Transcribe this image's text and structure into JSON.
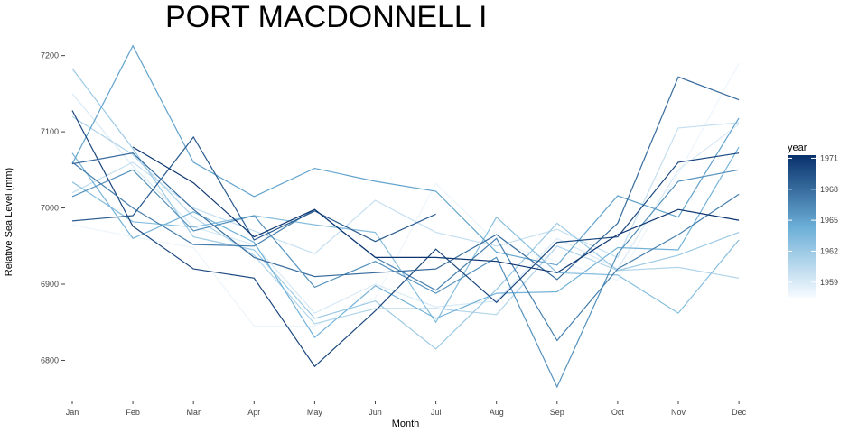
{
  "chart_data": {
    "type": "line",
    "title": "PORT MACDONNELL I",
    "xlabel": "Month",
    "ylabel": "Relative Sea Level (mm)",
    "categories": [
      "Jan",
      "Feb",
      "Mar",
      "Apr",
      "May",
      "Jun",
      "Jul",
      "Aug",
      "Sep",
      "Oct",
      "Nov",
      "Dec"
    ],
    "yticks": [
      6800,
      6900,
      7000,
      7100,
      7200
    ],
    "ylim": [
      6752,
      7228
    ],
    "grid": false,
    "legend": {
      "title": "year",
      "position": "right",
      "range": [
        1957.5,
        1971.3
      ],
      "ticks": [
        1959,
        1962,
        1965,
        1968,
        1971
      ],
      "color_low": "#f7fbff",
      "color_high": "#08306b"
    },
    "series": [
      {
        "year": 1958,
        "values": [
          6978,
          6962,
          6948,
          6845,
          6845,
          6882,
          7032,
          6955,
          6930,
          6905,
          7045,
          7190
        ]
      },
      {
        "year": 1959,
        "values": [
          7150,
          7055,
          6975,
          6952,
          6862,
          6900,
          6870,
          6878,
          6960,
          6920,
          7050,
          7110
        ]
      },
      {
        "year": 1960,
        "values": [
          7020,
          7060,
          7000,
          6970,
          6940,
          7010,
          6968,
          6950,
          6972,
          6935,
          7105,
          7112
        ]
      },
      {
        "year": 1961,
        "values": [
          7120,
          7070,
          6988,
          6938,
          6848,
          6868,
          6868,
          6860,
          6950,
          6918,
          6922,
          6908
        ]
      },
      {
        "year": 1962,
        "values": [
          7183,
          7078,
          6962,
          6945,
          6855,
          6878,
          6815,
          6893,
          6980,
          6918,
          6938,
          6968
        ]
      },
      {
        "year": 1963,
        "values": [
          7034,
          6982,
          6975,
          6990,
          6978,
          6968,
          6850,
          6988,
          6915,
          6912,
          6862,
          6958
        ]
      },
      {
        "year": 1964,
        "values": [
          7072,
          6960,
          6995,
          6955,
          6830,
          6898,
          6855,
          6888,
          6890,
          6948,
          6945,
          7080
        ]
      },
      {
        "year": 1965,
        "values": [
          7058,
          7213,
          7060,
          7015,
          7052,
          7035,
          7022,
          6942,
          6925,
          7016,
          6988,
          7118
        ]
      },
      {
        "year": 1966,
        "values": [
          7015,
          7050,
          6970,
          6990,
          6896,
          6930,
          6888,
          6935,
          6765,
          6940,
          7035,
          7050
        ]
      },
      {
        "year": 1967,
        "values": [
          7060,
          7000,
          6952,
          6950,
          6998,
          6935,
          6892,
          6960,
          6826,
          6920,
          6965,
          7018
        ]
      },
      {
        "year": 1968,
        "values": [
          7058,
          7072,
          6998,
          6935,
          6910,
          6915,
          6920,
          6965,
          6906,
          6980,
          7172,
          7142
        ]
      },
      {
        "year": 1969,
        "values": [
          6983,
          6990,
          7093,
          6958,
          6996,
          6956,
          6992,
          null,
          null,
          null,
          null,
          null
        ]
      },
      {
        "year": 1970,
        "values": [
          7128,
          6976,
          6920,
          6908,
          6792,
          6865,
          6946,
          6876,
          6955,
          6962,
          7060,
          7072
        ]
      },
      {
        "year": 1971,
        "values": [
          null,
          7080,
          7033,
          6962,
          6998,
          6935,
          6935,
          6930,
          6915,
          6965,
          6998,
          6984
        ]
      }
    ]
  }
}
